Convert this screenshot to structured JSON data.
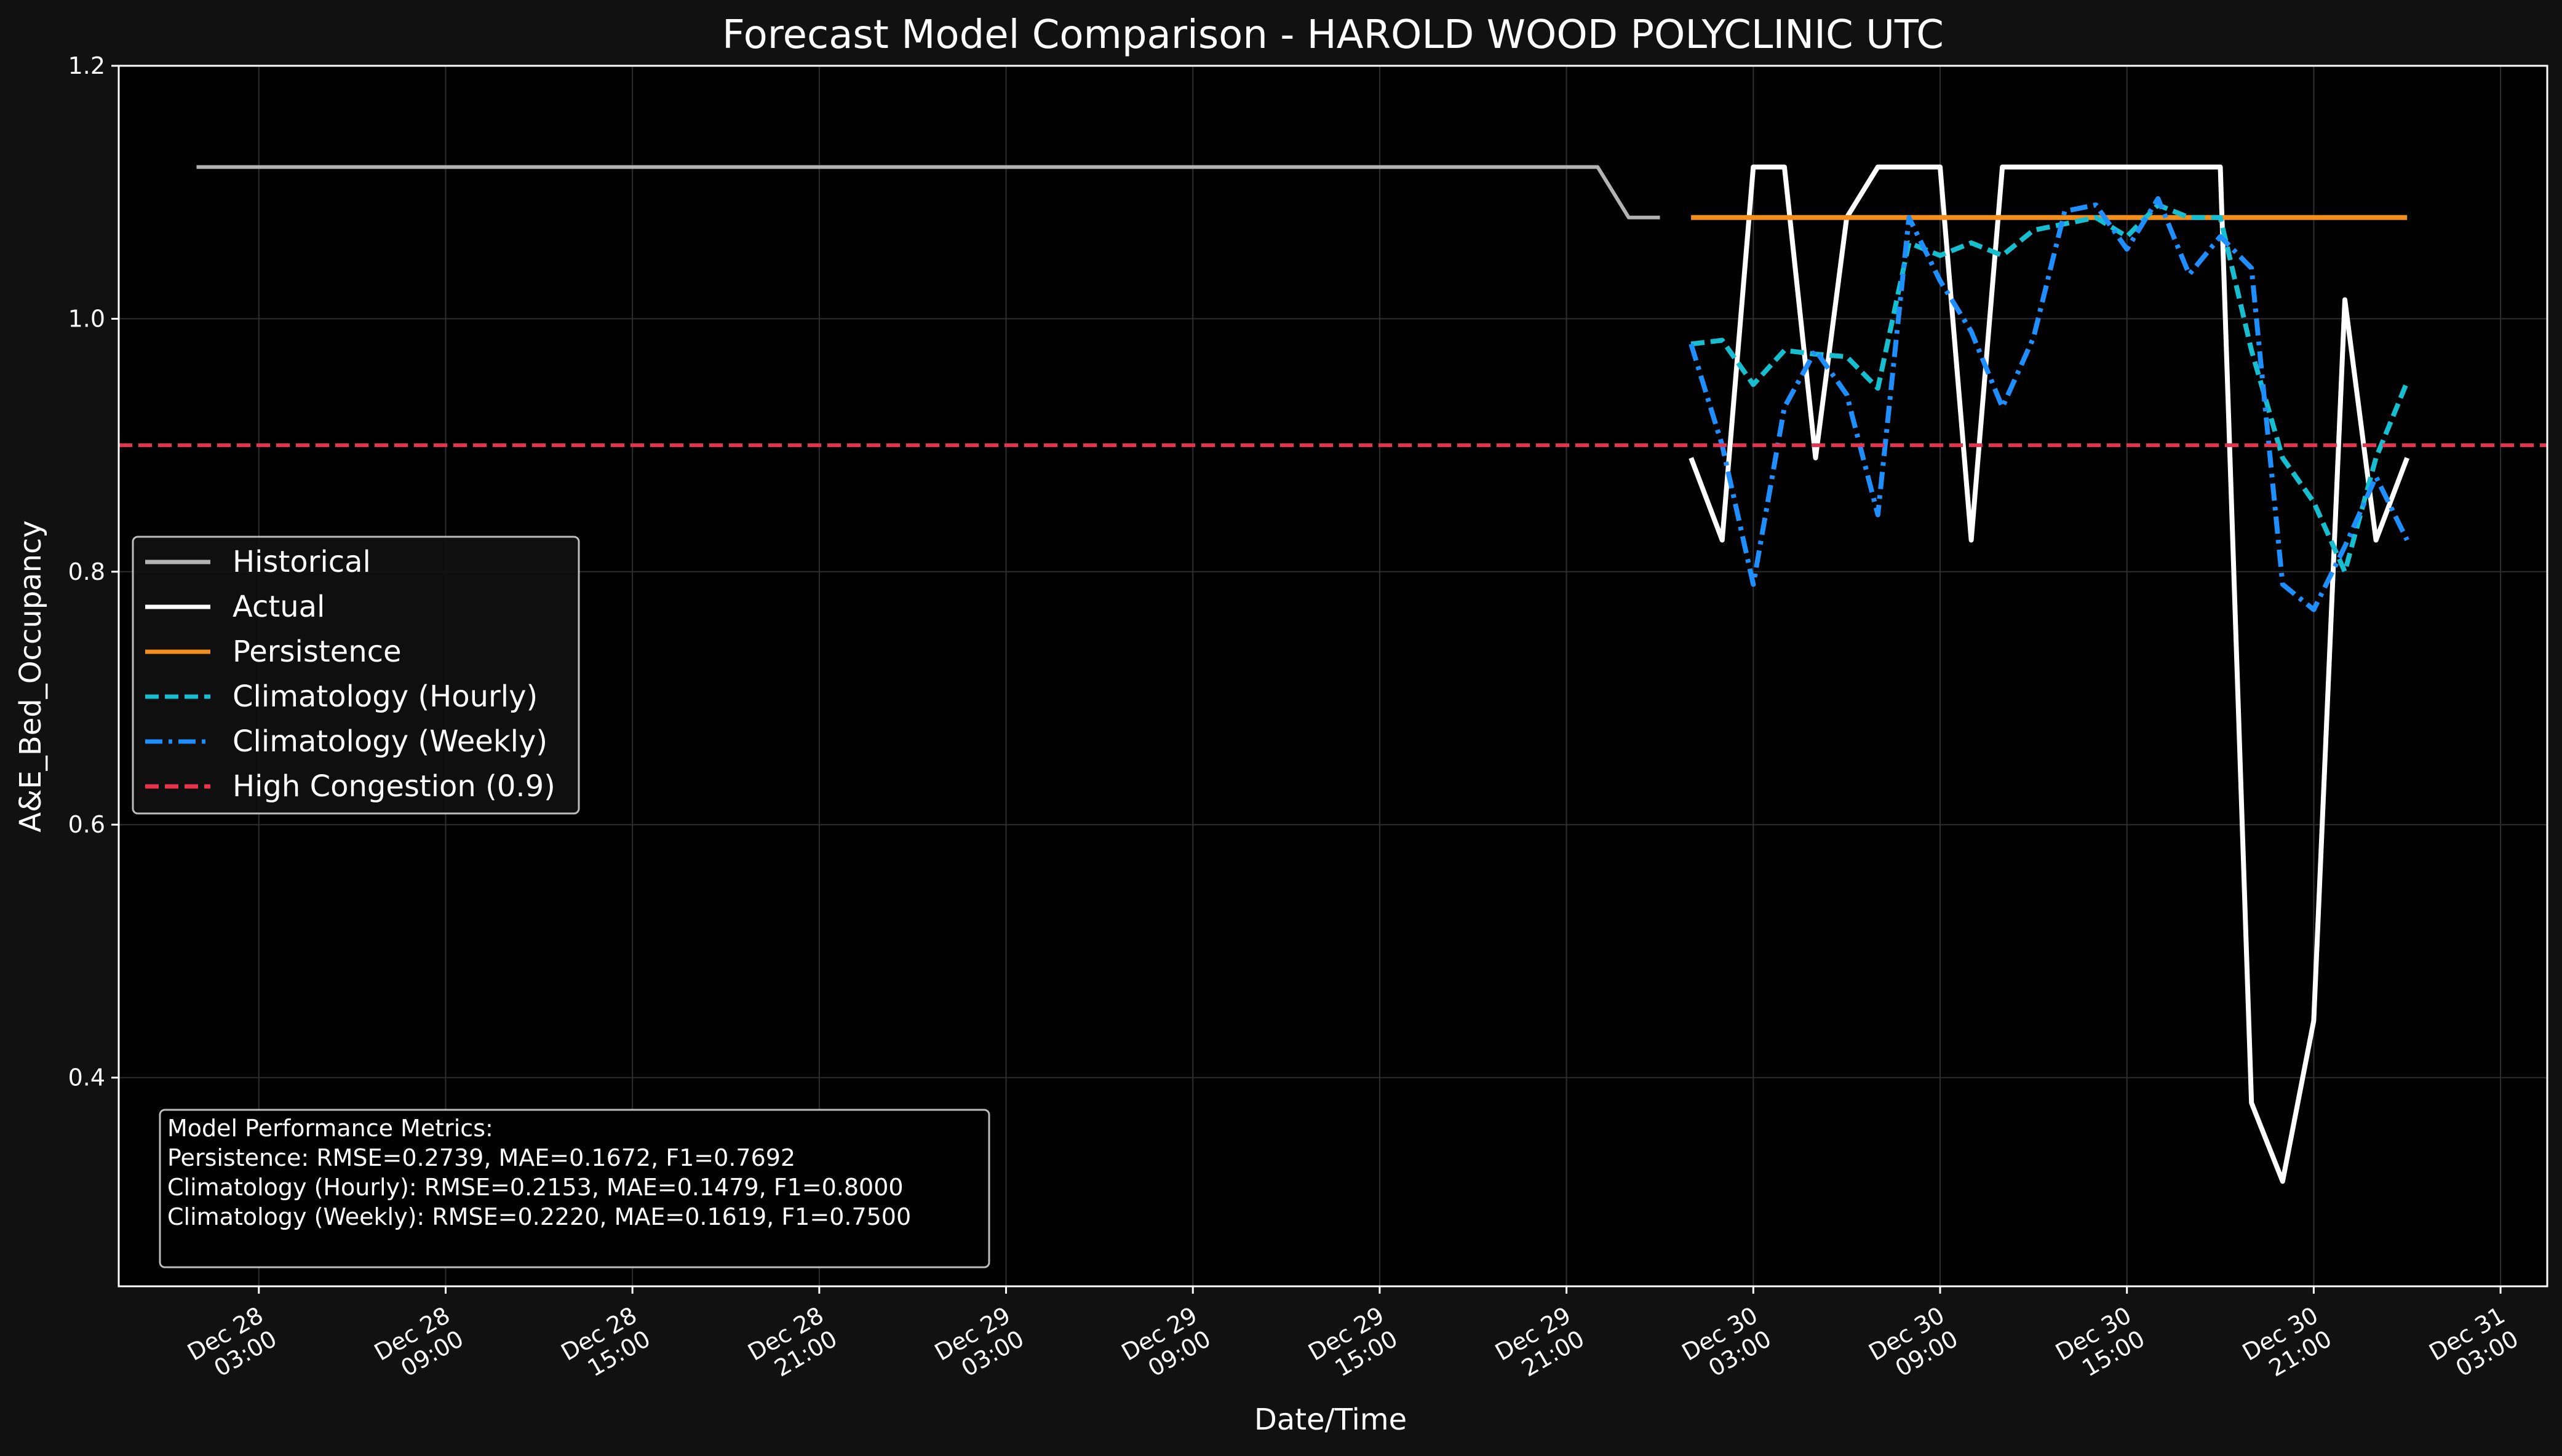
{
  "chart_data": {
    "type": "line",
    "title": "Forecast Model Comparison - HAROLD WOOD POLYCLINIC UTC",
    "xlabel": "Date/Time",
    "ylabel": "A&E_Bed_Occupancy",
    "ylim": [
      0.235,
      1.2
    ],
    "xlim": [
      "2025-12-27 22:30",
      "2025-12-31 04:30"
    ],
    "y_ticks": [
      "0.4",
      "0.6",
      "0.8",
      "1.0",
      "1.2"
    ],
    "x_ticks": [
      {
        "t": "2025-12-28 03:00",
        "line1": "Dec 28",
        "line2": "03:00"
      },
      {
        "t": "2025-12-28 09:00",
        "line1": "Dec 28",
        "line2": "09:00"
      },
      {
        "t": "2025-12-28 15:00",
        "line1": "Dec 28",
        "line2": "15:00"
      },
      {
        "t": "2025-12-28 21:00",
        "line1": "Dec 28",
        "line2": "21:00"
      },
      {
        "t": "2025-12-29 03:00",
        "line1": "Dec 29",
        "line2": "03:00"
      },
      {
        "t": "2025-12-29 09:00",
        "line1": "Dec 29",
        "line2": "09:00"
      },
      {
        "t": "2025-12-29 15:00",
        "line1": "Dec 29",
        "line2": "15:00"
      },
      {
        "t": "2025-12-29 21:00",
        "line1": "Dec 29",
        "line2": "21:00"
      },
      {
        "t": "2025-12-30 03:00",
        "line1": "Dec 30",
        "line2": "03:00"
      },
      {
        "t": "2025-12-30 09:00",
        "line1": "Dec 30",
        "line2": "09:00"
      },
      {
        "t": "2025-12-30 15:00",
        "line1": "Dec 30",
        "line2": "15:00"
      },
      {
        "t": "2025-12-30 21:00",
        "line1": "Dec 30",
        "line2": "21:00"
      },
      {
        "t": "2025-12-31 03:00",
        "line1": "Dec 31",
        "line2": "03:00"
      }
    ],
    "grid": true,
    "legend_position": "center-left",
    "series": [
      {
        "name": "Historical",
        "color": "#b3b3b3",
        "style": "solid",
        "points": [
          [
            "2025-12-28 01:00",
            1.12
          ],
          [
            "2025-12-29 22:00",
            1.12
          ],
          [
            "2025-12-29 23:00",
            1.08
          ],
          [
            "2025-12-30 00:00",
            1.08
          ]
        ]
      },
      {
        "name": "Actual",
        "color": "#ffffff",
        "style": "solid",
        "points": [
          [
            "2025-12-30 01:00",
            0.89
          ],
          [
            "2025-12-30 02:00",
            0.825
          ],
          [
            "2025-12-30 03:00",
            1.12
          ],
          [
            "2025-12-30 04:00",
            1.12
          ],
          [
            "2025-12-30 05:00",
            0.89
          ],
          [
            "2025-12-30 06:00",
            1.08
          ],
          [
            "2025-12-30 07:00",
            1.12
          ],
          [
            "2025-12-30 08:00",
            1.12
          ],
          [
            "2025-12-30 09:00",
            1.12
          ],
          [
            "2025-12-30 10:00",
            0.825
          ],
          [
            "2025-12-30 11:00",
            1.12
          ],
          [
            "2025-12-30 12:00",
            1.12
          ],
          [
            "2025-12-30 13:00",
            1.12
          ],
          [
            "2025-12-30 14:00",
            1.12
          ],
          [
            "2025-12-30 15:00",
            1.12
          ],
          [
            "2025-12-30 16:00",
            1.12
          ],
          [
            "2025-12-30 17:00",
            1.12
          ],
          [
            "2025-12-30 18:00",
            1.12
          ],
          [
            "2025-12-30 19:00",
            0.38
          ],
          [
            "2025-12-30 20:00",
            0.318
          ],
          [
            "2025-12-30 21:00",
            0.445
          ],
          [
            "2025-12-30 22:00",
            1.015
          ],
          [
            "2025-12-30 23:00",
            0.825
          ],
          [
            "2025-12-31 00:00",
            0.89
          ]
        ]
      },
      {
        "name": "Persistence",
        "color": "#f28e1c",
        "style": "solid",
        "points": [
          [
            "2025-12-30 01:00",
            1.08
          ],
          [
            "2025-12-31 00:00",
            1.08
          ]
        ]
      },
      {
        "name": "Climatology (Hourly)",
        "color": "#17becf",
        "style": "dashed",
        "points": [
          [
            "2025-12-30 01:00",
            0.98
          ],
          [
            "2025-12-30 02:00",
            0.983
          ],
          [
            "2025-12-30 03:00",
            0.948
          ],
          [
            "2025-12-30 04:00",
            0.975
          ],
          [
            "2025-12-30 05:00",
            0.972
          ],
          [
            "2025-12-30 06:00",
            0.97
          ],
          [
            "2025-12-30 07:00",
            0.945
          ],
          [
            "2025-12-30 08:00",
            1.06
          ],
          [
            "2025-12-30 09:00",
            1.05
          ],
          [
            "2025-12-30 10:00",
            1.06
          ],
          [
            "2025-12-30 11:00",
            1.05
          ],
          [
            "2025-12-30 12:00",
            1.07
          ],
          [
            "2025-12-30 13:00",
            1.075
          ],
          [
            "2025-12-30 14:00",
            1.08
          ],
          [
            "2025-12-30 15:00",
            1.065
          ],
          [
            "2025-12-30 16:00",
            1.09
          ],
          [
            "2025-12-30 17:00",
            1.08
          ],
          [
            "2025-12-30 18:00",
            1.08
          ],
          [
            "2025-12-30 19:00",
            0.975
          ],
          [
            "2025-12-30 20:00",
            0.89
          ],
          [
            "2025-12-30 21:00",
            0.855
          ],
          [
            "2025-12-30 22:00",
            0.8
          ],
          [
            "2025-12-30 23:00",
            0.89
          ],
          [
            "2025-12-31 00:00",
            0.95
          ]
        ]
      },
      {
        "name": "Climatology (Weekly)",
        "color": "#1f8fff",
        "style": "dashdot",
        "points": [
          [
            "2025-12-30 01:00",
            0.98
          ],
          [
            "2025-12-30 02:00",
            0.9
          ],
          [
            "2025-12-30 03:00",
            0.79
          ],
          [
            "2025-12-30 04:00",
            0.93
          ],
          [
            "2025-12-30 05:00",
            0.975
          ],
          [
            "2025-12-30 06:00",
            0.94
          ],
          [
            "2025-12-30 07:00",
            0.845
          ],
          [
            "2025-12-30 08:00",
            1.08
          ],
          [
            "2025-12-30 09:00",
            1.03
          ],
          [
            "2025-12-30 10:00",
            0.99
          ],
          [
            "2025-12-30 11:00",
            0.93
          ],
          [
            "2025-12-30 12:00",
            0.985
          ],
          [
            "2025-12-30 13:00",
            1.085
          ],
          [
            "2025-12-30 14:00",
            1.09
          ],
          [
            "2025-12-30 15:00",
            1.055
          ],
          [
            "2025-12-30 16:00",
            1.095
          ],
          [
            "2025-12-30 17:00",
            1.035
          ],
          [
            "2025-12-30 18:00",
            1.065
          ],
          [
            "2025-12-30 19:00",
            1.04
          ],
          [
            "2025-12-30 20:00",
            0.79
          ],
          [
            "2025-12-30 21:00",
            0.77
          ],
          [
            "2025-12-30 22:00",
            0.82
          ],
          [
            "2025-12-30 23:00",
            0.875
          ],
          [
            "2025-12-31 00:00",
            0.825
          ]
        ]
      },
      {
        "name": "High Congestion (0.9)",
        "color": "#e8334e",
        "style": "dashed",
        "hline": 0.9
      }
    ],
    "metrics": {
      "heading": "Model Performance Metrics:",
      "lines": [
        "Persistence: RMSE=0.2739, MAE=0.1672, F1=0.7692",
        "Climatology (Hourly): RMSE=0.2153, MAE=0.1479, F1=0.8000",
        "Climatology (Weekly): RMSE=0.2220, MAE=0.1619, F1=0.7500"
      ]
    }
  }
}
